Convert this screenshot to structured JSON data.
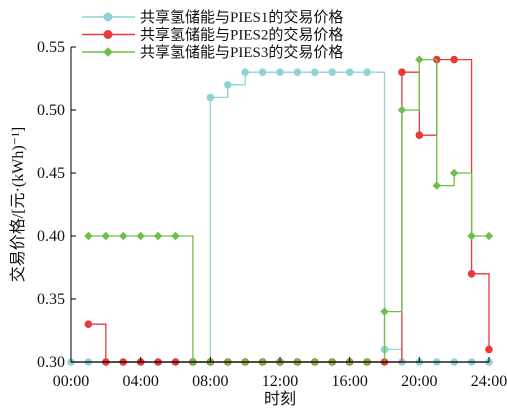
{
  "chart_data": {
    "type": "line",
    "step": true,
    "xlabel": "时刻",
    "ylabel": "交易价格/[元·(kWh)⁻¹]",
    "xlim": [
      0,
      24
    ],
    "ylim": [
      0.3,
      0.55
    ],
    "x_ticks": [
      0,
      4,
      8,
      12,
      16,
      20,
      24
    ],
    "x_tick_labels": [
      "00:00",
      "04:00",
      "08:00",
      "12:00",
      "16:00",
      "20:00",
      "24:00"
    ],
    "y_ticks": [
      0.3,
      0.35,
      0.4,
      0.45,
      0.5,
      0.55
    ],
    "y_tick_labels": [
      "0.30",
      "0.35",
      "0.40",
      "0.45",
      "0.50",
      "0.55"
    ],
    "legend_position": "top",
    "x": [
      0,
      1,
      2,
      3,
      4,
      5,
      6,
      7,
      8,
      9,
      10,
      11,
      12,
      13,
      14,
      15,
      16,
      17,
      18,
      19,
      20,
      21,
      22,
      23,
      24
    ],
    "series": [
      {
        "name": "共享氢储能与PIES1的交易价格",
        "color": "#8fd3d6",
        "marker": "circle",
        "values": [
          0.3,
          0.3,
          0.3,
          0.3,
          0.3,
          0.3,
          0.3,
          0.3,
          0.51,
          0.52,
          0.53,
          0.53,
          0.53,
          0.53,
          0.53,
          0.53,
          0.53,
          0.53,
          0.31,
          0.3,
          0.3,
          0.3,
          0.3,
          0.3,
          0.3
        ]
      },
      {
        "name": "共享氢储能与PIES2的交易价格",
        "color": "#e8393c",
        "marker": "circle",
        "values": [
          null,
          0.33,
          0.3,
          0.3,
          0.3,
          0.3,
          0.3,
          0.3,
          0.3,
          0.3,
          0.3,
          0.3,
          0.3,
          0.3,
          0.3,
          0.3,
          0.3,
          0.3,
          0.3,
          0.53,
          0.48,
          0.54,
          0.54,
          0.37,
          0.31
        ]
      },
      {
        "name": "共享氢储能与PIES3的交易价格",
        "color": "#6cc04a",
        "marker": "diamond",
        "values": [
          null,
          0.4,
          0.4,
          0.4,
          0.4,
          0.4,
          0.4,
          0.3,
          0.3,
          0.3,
          0.3,
          0.3,
          0.3,
          0.3,
          0.3,
          0.3,
          0.3,
          0.3,
          0.34,
          0.5,
          0.54,
          0.44,
          0.45,
          0.4,
          0.4
        ]
      }
    ]
  }
}
